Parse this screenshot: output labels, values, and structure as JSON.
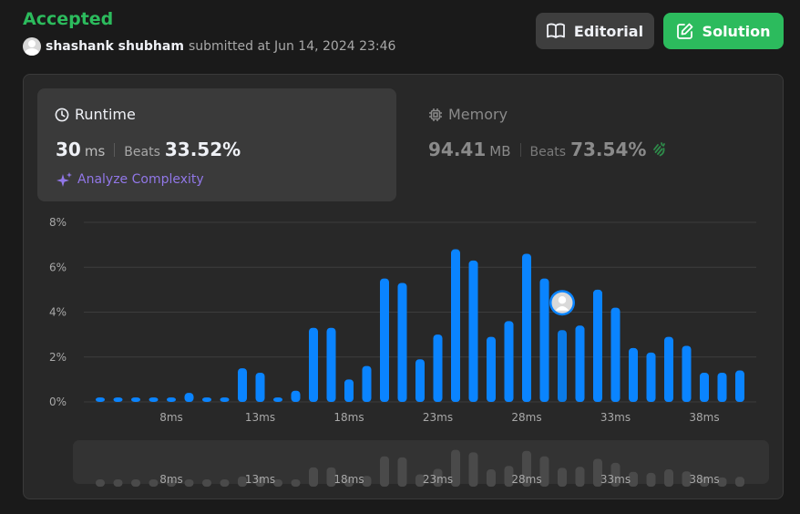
{
  "header": {
    "status": "Accepted",
    "submitter_name": "shashank shubham",
    "submitted_text": "submitted at Jun 14, 2024 23:46"
  },
  "buttons": {
    "editorial": "Editorial",
    "solution": "Solution"
  },
  "runtime": {
    "title": "Runtime",
    "value": "30",
    "unit": "ms",
    "beats_label": "Beats",
    "beats_pct": "33.52%",
    "analyze_label": "Analyze Complexity"
  },
  "memory": {
    "title": "Memory",
    "value": "94.41",
    "unit": "MB",
    "beats_label": "Beats",
    "beats_pct": "73.54%"
  },
  "colors": {
    "accent_green": "#2cbb5d",
    "bar_blue": "#0a84ff",
    "analyze_purple": "#9177e7"
  },
  "chart_data": {
    "type": "bar",
    "y_ticks": [
      "8%",
      "6%",
      "4%",
      "2%",
      "0%"
    ],
    "ylim": [
      0,
      8
    ],
    "x_tick_labels": [
      "8ms",
      "13ms",
      "18ms",
      "23ms",
      "28ms",
      "33ms",
      "38ms"
    ],
    "x_tick_values": [
      8,
      13,
      18,
      23,
      28,
      33,
      38
    ],
    "x": [
      4,
      5,
      6,
      7,
      8,
      9,
      10,
      11,
      12,
      13,
      14,
      15,
      16,
      17,
      18,
      19,
      20,
      21,
      22,
      23,
      24,
      25,
      26,
      27,
      28,
      29,
      30,
      31,
      32,
      33,
      34,
      35,
      36,
      37,
      38,
      39
    ],
    "values": [
      0.2,
      0.2,
      0.2,
      0.2,
      0.2,
      0.4,
      0.2,
      0.2,
      1.5,
      1.3,
      0.2,
      0.5,
      3.3,
      3.3,
      1.0,
      1.6,
      5.5,
      5.3,
      1.9,
      3.0,
      6.8,
      6.3,
      2.9,
      3.6,
      6.6,
      5.5,
      3.2,
      3.4,
      5.0,
      4.2,
      2.4,
      2.2,
      2.9,
      2.5,
      1.3,
      1.3
    ],
    "extra_values": [
      1.4
    ],
    "highlight_x": 30,
    "grid": true,
    "legend": "none"
  }
}
